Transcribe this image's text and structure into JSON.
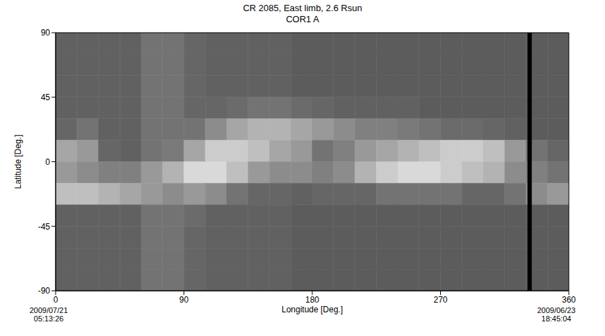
{
  "chart_data": {
    "type": "heatmap",
    "title": "CR 2085, East limb, 2.6 Rsun",
    "subtitle": "COR1 A",
    "x_label": "Longitude [Deg.]",
    "y_label": "Latitude [Deg.]",
    "xlim": [
      0,
      360
    ],
    "ylim": [
      -90,
      90
    ],
    "xticks": [
      0,
      90,
      180,
      270,
      360
    ],
    "yticks": [
      -90,
      -45,
      0,
      45,
      90
    ],
    "annotations": {
      "bottom_left": [
        "2009/07/21",
        "05:13:26"
      ],
      "bottom_right": [
        "2009/06/23",
        "18:45:04"
      ]
    },
    "cell_range": [
      0,
      100
    ],
    "gap": [
      331,
      334
    ],
    "cells": [
      [
        38,
        38,
        38,
        38,
        45,
        45,
        40,
        38,
        38,
        38,
        38,
        36,
        36,
        36,
        36,
        36,
        36,
        36,
        36,
        36,
        36,
        36,
        36,
        36
      ],
      [
        38,
        38,
        38,
        38,
        45,
        45,
        40,
        38,
        38,
        38,
        38,
        36,
        36,
        36,
        36,
        36,
        36,
        36,
        36,
        36,
        36,
        36,
        36,
        36
      ],
      [
        38,
        38,
        38,
        38,
        45,
        45,
        40,
        38,
        38,
        38,
        38,
        36,
        36,
        36,
        36,
        36,
        36,
        36,
        36,
        36,
        36,
        36,
        36,
        36
      ],
      [
        38,
        38,
        38,
        38,
        45,
        45,
        40,
        40,
        42,
        45,
        45,
        42,
        40,
        38,
        38,
        38,
        38,
        36,
        36,
        36,
        36,
        36,
        36,
        36
      ],
      [
        40,
        45,
        38,
        38,
        45,
        45,
        45,
        55,
        65,
        70,
        70,
        65,
        60,
        55,
        50,
        50,
        48,
        45,
        42,
        42,
        40,
        38,
        36,
        36
      ],
      [
        65,
        60,
        40,
        38,
        45,
        48,
        65,
        80,
        80,
        75,
        65,
        60,
        45,
        50,
        60,
        65,
        70,
        75,
        80,
        80,
        75,
        60,
        45,
        40
      ],
      [
        60,
        55,
        50,
        50,
        60,
        70,
        85,
        85,
        75,
        60,
        55,
        55,
        50,
        55,
        70,
        80,
        85,
        85,
        80,
        75,
        70,
        55,
        50,
        45
      ],
      [
        75,
        75,
        70,
        65,
        60,
        55,
        60,
        55,
        45,
        40,
        40,
        38,
        40,
        40,
        40,
        45,
        45,
        45,
        45,
        40,
        40,
        45,
        55,
        60
      ],
      [
        38,
        38,
        38,
        38,
        45,
        45,
        42,
        38,
        38,
        38,
        38,
        36,
        36,
        36,
        36,
        36,
        36,
        36,
        36,
        36,
        36,
        36,
        36,
        36
      ],
      [
        38,
        38,
        38,
        38,
        45,
        45,
        40,
        38,
        38,
        38,
        38,
        36,
        36,
        36,
        36,
        36,
        36,
        36,
        36,
        36,
        36,
        36,
        36,
        36
      ],
      [
        38,
        38,
        38,
        38,
        45,
        45,
        40,
        38,
        38,
        38,
        38,
        36,
        36,
        36,
        36,
        36,
        36,
        36,
        36,
        36,
        36,
        36,
        36,
        36
      ],
      [
        38,
        38,
        38,
        38,
        45,
        45,
        40,
        38,
        38,
        38,
        38,
        36,
        36,
        36,
        36,
        36,
        36,
        36,
        36,
        36,
        36,
        36,
        36,
        36
      ]
    ]
  }
}
